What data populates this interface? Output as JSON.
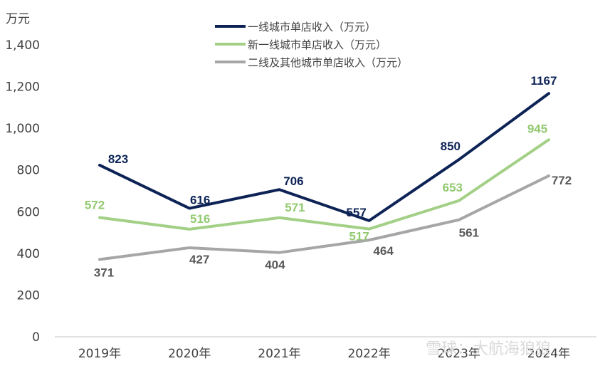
{
  "chart_data": {
    "type": "line",
    "unit_label": "万元",
    "categories": [
      "2019年",
      "2020年",
      "2021年",
      "2022年",
      "2023年",
      "2024年"
    ],
    "ylim": [
      0,
      1400
    ],
    "yticks": [
      "0",
      "200",
      "400",
      "600",
      "800",
      "1,000",
      "1,200",
      "1,400"
    ],
    "ytick_values": [
      0,
      200,
      400,
      600,
      800,
      1000,
      1200,
      1400
    ],
    "grid": false,
    "legend_position": "top-center",
    "series": [
      {
        "name": "一线城市单店收入（万元）",
        "color": "#0d2356",
        "values": [
          823,
          616,
          706,
          557,
          850,
          1167
        ]
      },
      {
        "name": "新一线城市单店收入（万元）",
        "color": "#a3d086",
        "values": [
          572,
          516,
          571,
          517,
          653,
          945
        ]
      },
      {
        "name": "二线及其他城市单店收入（万元）",
        "color": "#a6a6a6",
        "values": [
          371,
          427,
          404,
          464,
          561,
          772
        ]
      }
    ]
  },
  "watermark": "雪球：大航海狼狼"
}
